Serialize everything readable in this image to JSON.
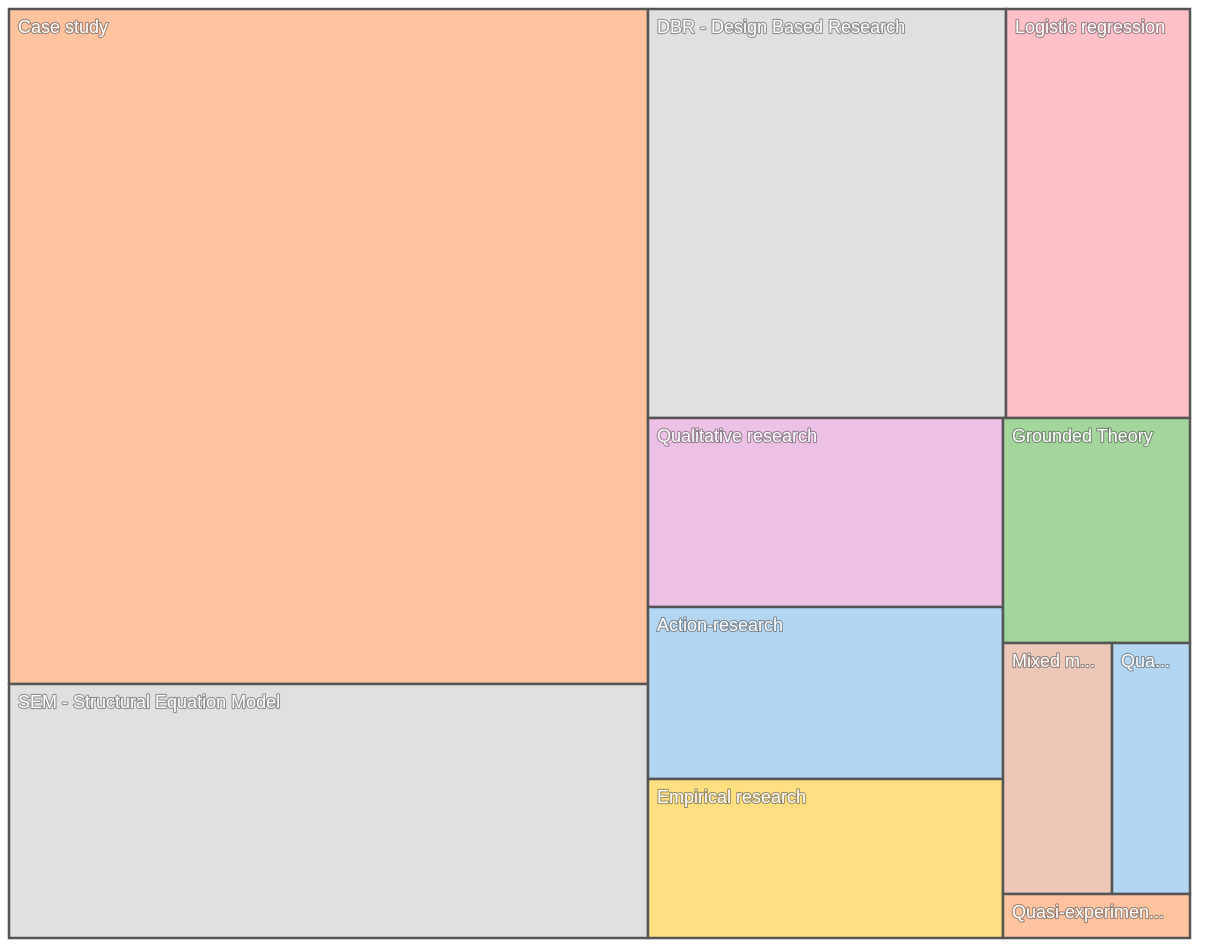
{
  "chart_data": {
    "type": "treemap",
    "border_color": "#555555",
    "label_color": "#ffffff",
    "items": [
      {
        "label": "Case study",
        "value": 427,
        "color": "#FFC39F"
      },
      {
        "label": "SEM - Structural Equation Model",
        "value": 161,
        "color": "#E0E0E0"
      },
      {
        "label": "DBR - Design Based Research",
        "value": 146,
        "color": "#E0E0E0"
      },
      {
        "label": "Logistic regression",
        "value": 75,
        "color": "#FFC0C8"
      },
      {
        "label": "Qualitative research",
        "value": 67,
        "color": "#EDC1E6"
      },
      {
        "label": "Action-research",
        "value": 60,
        "color": "#B3D6F2"
      },
      {
        "label": "Empirical research",
        "value": 55,
        "color": "#FFDF7F"
      },
      {
        "label": "Grounded Theory",
        "value": 41,
        "color": "#A3D69B"
      },
      {
        "label": "Mixed m...",
        "value": 27,
        "color": "#EDC7B8"
      },
      {
        "label": "Qua...",
        "value": 19,
        "color": "#B3D6F2"
      },
      {
        "label": "Quasi-experimen...",
        "value": 7,
        "color": "#FFC39F"
      }
    ]
  }
}
